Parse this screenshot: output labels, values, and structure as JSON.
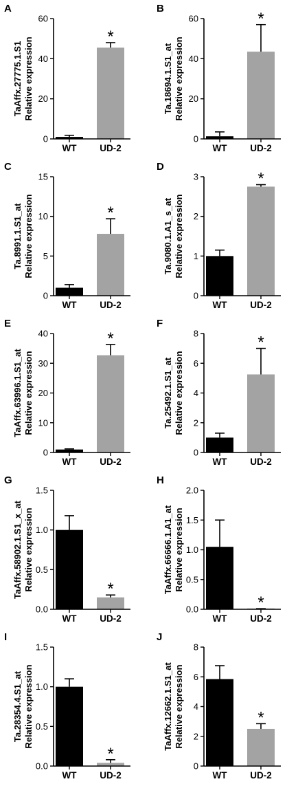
{
  "chart_data": [
    {
      "type": "bar",
      "panel": "A",
      "ylabel": [
        "TaAffx.27775.1.S1",
        "Relative expression"
      ],
      "categories": [
        "WT",
        "UD-2"
      ],
      "values": [
        1.0,
        45.5
      ],
      "errors": [
        0.8,
        2.5
      ],
      "significance": [
        "",
        "*"
      ],
      "ylim": [
        0,
        60
      ],
      "yticks": [
        0,
        20,
        40,
        60
      ],
      "tick_labels": [
        "0",
        "20",
        "40",
        "60"
      ],
      "colors": [
        "#000000",
        "#a3a3a3"
      ]
    },
    {
      "type": "bar",
      "panel": "B",
      "ylabel": [
        "Ta.18694.1.S1_at",
        "Relative expression"
      ],
      "categories": [
        "WT",
        "UD-2"
      ],
      "values": [
        1.3,
        43.5
      ],
      "errors": [
        2.2,
        13.5
      ],
      "significance": [
        "",
        "*"
      ],
      "ylim": [
        0,
        60
      ],
      "yticks": [
        0,
        20,
        40,
        60
      ],
      "tick_labels": [
        "0",
        "20",
        "40",
        "60"
      ],
      "colors": [
        "#000000",
        "#a3a3a3"
      ]
    },
    {
      "type": "bar",
      "panel": "C",
      "ylabel": [
        "Ta.8991.1.S1_at",
        "Relative expression"
      ],
      "categories": [
        "WT",
        "UD-2"
      ],
      "values": [
        1.0,
        7.8
      ],
      "errors": [
        0.4,
        1.9
      ],
      "significance": [
        "",
        "*"
      ],
      "ylim": [
        0,
        15
      ],
      "yticks": [
        0,
        5,
        10,
        15
      ],
      "tick_labels": [
        "0",
        "5",
        "10",
        "15"
      ],
      "colors": [
        "#000000",
        "#a3a3a3"
      ]
    },
    {
      "type": "bar",
      "panel": "D",
      "ylabel": [
        "Ta.9080.1.A1_s_at",
        "Relative expression"
      ],
      "categories": [
        "WT",
        "UD-2"
      ],
      "values": [
        1.0,
        2.75
      ],
      "errors": [
        0.15,
        0.05
      ],
      "significance": [
        "",
        "*"
      ],
      "ylim": [
        0,
        3
      ],
      "yticks": [
        0,
        1,
        2,
        3
      ],
      "tick_labels": [
        "0",
        "1",
        "2",
        "3"
      ],
      "colors": [
        "#000000",
        "#a3a3a3"
      ]
    },
    {
      "type": "bar",
      "panel": "E",
      "ylabel": [
        "TaAffx.63996.1.S1_at",
        "Relative expression"
      ],
      "categories": [
        "WT",
        "UD-2"
      ],
      "values": [
        1.0,
        32.7
      ],
      "errors": [
        0.2,
        3.6
      ],
      "significance": [
        "",
        "*"
      ],
      "ylim": [
        0,
        40
      ],
      "yticks": [
        0,
        10,
        20,
        30,
        40
      ],
      "tick_labels": [
        "0",
        "10",
        "20",
        "30",
        "40"
      ],
      "colors": [
        "#000000",
        "#a3a3a3"
      ]
    },
    {
      "type": "bar",
      "panel": "F",
      "ylabel": [
        "Ta.25492.1.S1_at",
        "Relative expression"
      ],
      "categories": [
        "WT",
        "UD-2"
      ],
      "values": [
        1.0,
        5.25
      ],
      "errors": [
        0.3,
        1.75
      ],
      "significance": [
        "",
        "*"
      ],
      "ylim": [
        0,
        8
      ],
      "yticks": [
        0,
        2,
        4,
        6,
        8
      ],
      "tick_labels": [
        "0",
        "2",
        "4",
        "6",
        "8"
      ],
      "colors": [
        "#000000",
        "#a3a3a3"
      ]
    },
    {
      "type": "bar",
      "panel": "G",
      "ylabel": [
        "TaAffx.58902.1.S1_x_at",
        "Relative expression"
      ],
      "categories": [
        "WT",
        "UD-2"
      ],
      "values": [
        1.0,
        0.15
      ],
      "errors": [
        0.18,
        0.03
      ],
      "significance": [
        "",
        "*"
      ],
      "ylim": [
        0,
        1.5
      ],
      "yticks": [
        0,
        0.5,
        1.0,
        1.5
      ],
      "tick_labels": [
        "0.0",
        "0.5",
        "1.0",
        "1.5"
      ],
      "colors": [
        "#000000",
        "#a3a3a3"
      ]
    },
    {
      "type": "bar",
      "panel": "H",
      "ylabel": [
        "TaAffx.66666.1.A1_at",
        "Relative expression"
      ],
      "categories": [
        "WT",
        "UD-2"
      ],
      "values": [
        1.05,
        0.005
      ],
      "errors": [
        0.45,
        0.005
      ],
      "significance": [
        "",
        "*"
      ],
      "ylim": [
        0,
        2.0
      ],
      "yticks": [
        0,
        0.5,
        1.0,
        1.5,
        2.0
      ],
      "tick_labels": [
        "0.0",
        "0.5",
        "1.0",
        "1.5",
        "2.0"
      ],
      "colors": [
        "#000000",
        "#a3a3a3"
      ]
    },
    {
      "type": "bar",
      "panel": "I",
      "ylabel": [
        "Ta.28354.4.S1_at",
        "Relative expression"
      ],
      "categories": [
        "WT",
        "UD-2"
      ],
      "values": [
        1.0,
        0.04
      ],
      "errors": [
        0.1,
        0.04
      ],
      "significance": [
        "",
        "*"
      ],
      "ylim": [
        0,
        1.5
      ],
      "yticks": [
        0,
        0.5,
        1.0,
        1.5
      ],
      "tick_labels": [
        "0.0",
        "0.5",
        "1.0",
        "1.5"
      ],
      "colors": [
        "#000000",
        "#a3a3a3"
      ]
    },
    {
      "type": "bar",
      "panel": "J",
      "ylabel": [
        "TaAffx.12662.1.S1_at",
        "Relative expression"
      ],
      "categories": [
        "WT",
        "UD-2"
      ],
      "values": [
        5.85,
        2.5
      ],
      "errors": [
        0.9,
        0.35
      ],
      "significance": [
        "",
        "*"
      ],
      "ylim": [
        0,
        8
      ],
      "yticks": [
        0,
        2,
        4,
        6,
        8
      ],
      "tick_labels": [
        "0",
        "2",
        "4",
        "6",
        "8"
      ],
      "colors": [
        "#000000",
        "#a3a3a3"
      ]
    }
  ]
}
